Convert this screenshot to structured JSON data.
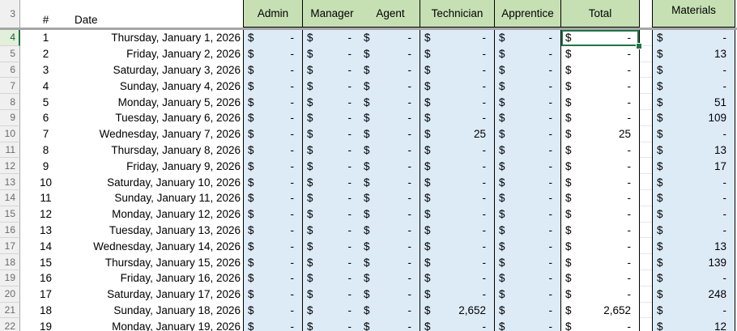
{
  "sheet": {
    "corner_row_label": "3",
    "currency_symbol": "$",
    "header": {
      "num": "#",
      "date": "Date",
      "admin": "Admin",
      "manager": "Manager",
      "agent": "Agent",
      "technician": "Technician",
      "apprentice": "Apprentice",
      "total": "Total",
      "materials": "Materials"
    },
    "selection": {
      "row_number": 4,
      "column": "total"
    },
    "colors": {
      "header_green": "#c6e0b4",
      "cell_blue": "#ddebf7",
      "selection_green": "#217346",
      "thick_grid_gray": "#a6a6a6"
    },
    "rows": [
      {
        "row": 4,
        "num": "1",
        "date": "Thursday, January 1, 2026",
        "admin": "-",
        "manager": "-",
        "agent": "-",
        "technician": "-",
        "apprentice": "-",
        "total": "-",
        "materials": "-"
      },
      {
        "row": 5,
        "num": "2",
        "date": "Friday, January 2, 2026",
        "admin": "-",
        "manager": "-",
        "agent": "-",
        "technician": "-",
        "apprentice": "-",
        "total": "-",
        "materials": "13"
      },
      {
        "row": 6,
        "num": "3",
        "date": "Saturday, January 3, 2026",
        "admin": "-",
        "manager": "-",
        "agent": "-",
        "technician": "-",
        "apprentice": "-",
        "total": "-",
        "materials": "-"
      },
      {
        "row": 7,
        "num": "4",
        "date": "Sunday, January 4, 2026",
        "admin": "-",
        "manager": "-",
        "agent": "-",
        "technician": "-",
        "apprentice": "-",
        "total": "-",
        "materials": "-"
      },
      {
        "row": 8,
        "num": "5",
        "date": "Monday, January 5, 2026",
        "admin": "-",
        "manager": "-",
        "agent": "-",
        "technician": "-",
        "apprentice": "-",
        "total": "-",
        "materials": "51"
      },
      {
        "row": 9,
        "num": "6",
        "date": "Tuesday, January 6, 2026",
        "admin": "-",
        "manager": "-",
        "agent": "-",
        "technician": "-",
        "apprentice": "-",
        "total": "-",
        "materials": "109"
      },
      {
        "row": 10,
        "num": "7",
        "date": "Wednesday, January 7, 2026",
        "admin": "-",
        "manager": "-",
        "agent": "-",
        "technician": "25",
        "apprentice": "-",
        "total": "25",
        "materials": "-"
      },
      {
        "row": 11,
        "num": "8",
        "date": "Thursday, January 8, 2026",
        "admin": "-",
        "manager": "-",
        "agent": "-",
        "technician": "-",
        "apprentice": "-",
        "total": "-",
        "materials": "13"
      },
      {
        "row": 12,
        "num": "9",
        "date": "Friday, January 9, 2026",
        "admin": "-",
        "manager": "-",
        "agent": "-",
        "technician": "-",
        "apprentice": "-",
        "total": "-",
        "materials": "17"
      },
      {
        "row": 13,
        "num": "10",
        "date": "Saturday, January 10, 2026",
        "admin": "-",
        "manager": "-",
        "agent": "-",
        "technician": "-",
        "apprentice": "-",
        "total": "-",
        "materials": "-"
      },
      {
        "row": 14,
        "num": "11",
        "date": "Sunday, January 11, 2026",
        "admin": "-",
        "manager": "-",
        "agent": "-",
        "technician": "-",
        "apprentice": "-",
        "total": "-",
        "materials": "-"
      },
      {
        "row": 15,
        "num": "12",
        "date": "Monday, January 12, 2026",
        "admin": "-",
        "manager": "-",
        "agent": "-",
        "technician": "-",
        "apprentice": "-",
        "total": "-",
        "materials": "-"
      },
      {
        "row": 16,
        "num": "13",
        "date": "Tuesday, January 13, 2026",
        "admin": "-",
        "manager": "-",
        "agent": "-",
        "technician": "-",
        "apprentice": "-",
        "total": "-",
        "materials": "-"
      },
      {
        "row": 17,
        "num": "14",
        "date": "Wednesday, January 14, 2026",
        "admin": "-",
        "manager": "-",
        "agent": "-",
        "technician": "-",
        "apprentice": "-",
        "total": "-",
        "materials": "13"
      },
      {
        "row": 18,
        "num": "15",
        "date": "Thursday, January 15, 2026",
        "admin": "-",
        "manager": "-",
        "agent": "-",
        "technician": "-",
        "apprentice": "-",
        "total": "-",
        "materials": "139"
      },
      {
        "row": 19,
        "num": "16",
        "date": "Friday, January 16, 2026",
        "admin": "-",
        "manager": "-",
        "agent": "-",
        "technician": "-",
        "apprentice": "-",
        "total": "-",
        "materials": "-"
      },
      {
        "row": 20,
        "num": "17",
        "date": "Saturday, January 17, 2026",
        "admin": "-",
        "manager": "-",
        "agent": "-",
        "technician": "-",
        "apprentice": "-",
        "total": "-",
        "materials": "248"
      },
      {
        "row": 21,
        "num": "18",
        "date": "Sunday, January 18, 2026",
        "admin": "-",
        "manager": "-",
        "agent": "-",
        "technician": "2,652",
        "apprentice": "-",
        "total": "2,652",
        "materials": "-"
      },
      {
        "row": 22,
        "num": "19",
        "date": "Monday, January 19, 2026",
        "admin": "-",
        "manager": "-",
        "agent": "-",
        "technician": "-",
        "apprentice": "-",
        "total": "-",
        "materials": "12"
      }
    ]
  }
}
